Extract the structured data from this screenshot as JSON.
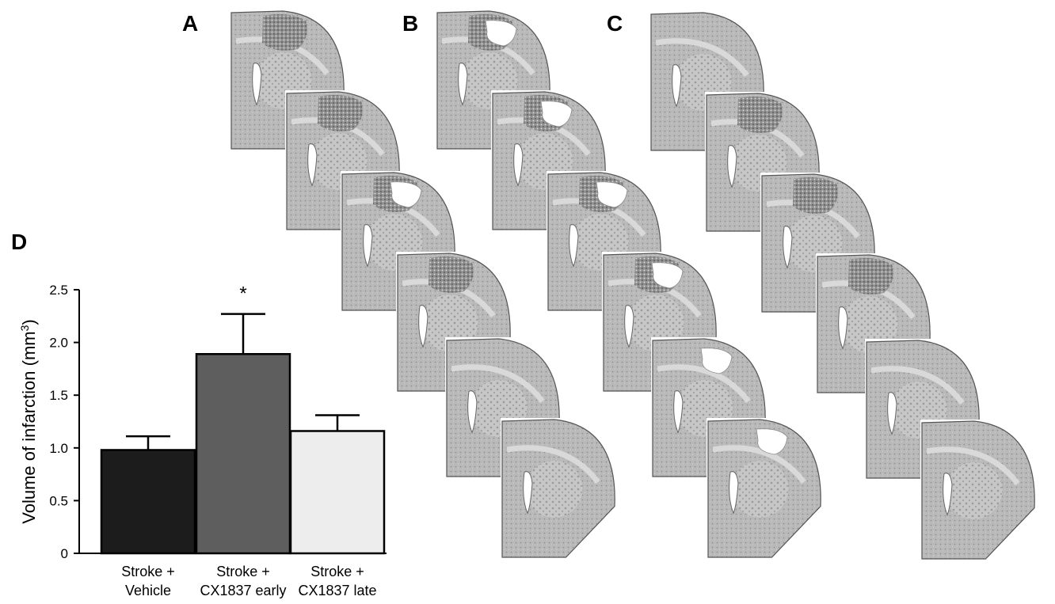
{
  "panels": {
    "a": "A",
    "b": "B",
    "c": "C",
    "d": "D"
  },
  "chart_data": {
    "type": "bar",
    "title": "",
    "xlabel": "",
    "ylabel": "Volume of infarction (mm",
    "ylabel_sup": "3",
    "ylabel_close": ")",
    "ylim": [
      0,
      2.5
    ],
    "yticks": [
      "0",
      "0.5",
      "1.0",
      "1.5",
      "2.0",
      "2.5"
    ],
    "grid": false,
    "categories": [
      [
        "Stroke +",
        "Vehicle"
      ],
      [
        "Stroke +",
        "CX1837 early"
      ],
      [
        "Stroke +",
        "CX1837 late"
      ]
    ],
    "values": [
      0.98,
      1.89,
      1.16
    ],
    "errors": [
      0.13,
      0.38,
      0.15
    ],
    "bar_colors": [
      "#1c1c1c",
      "#5e5e5e",
      "#ededed"
    ],
    "annotations": [
      "",
      "*",
      ""
    ]
  },
  "sections": {
    "columns": [
      {
        "name": "A",
        "slices": [
          {
            "lesion": true,
            "hole": false
          },
          {
            "lesion": true,
            "hole": false
          },
          {
            "lesion": true,
            "hole": true
          },
          {
            "lesion": true,
            "hole": false
          },
          {
            "lesion": false,
            "hole": false
          },
          {
            "lesion": false,
            "hole": false
          }
        ]
      },
      {
        "name": "B",
        "slices": [
          {
            "lesion": true,
            "hole": true
          },
          {
            "lesion": true,
            "hole": true
          },
          {
            "lesion": true,
            "hole": true
          },
          {
            "lesion": true,
            "hole": true
          },
          {
            "lesion": false,
            "hole": true
          },
          {
            "lesion": false,
            "hole": true
          }
        ]
      },
      {
        "name": "C",
        "slices": [
          {
            "lesion": false,
            "hole": false
          },
          {
            "lesion": true,
            "hole": false
          },
          {
            "lesion": true,
            "hole": false
          },
          {
            "lesion": true,
            "hole": false
          },
          {
            "lesion": false,
            "hole": false
          },
          {
            "lesion": false,
            "hole": false
          }
        ]
      }
    ]
  }
}
